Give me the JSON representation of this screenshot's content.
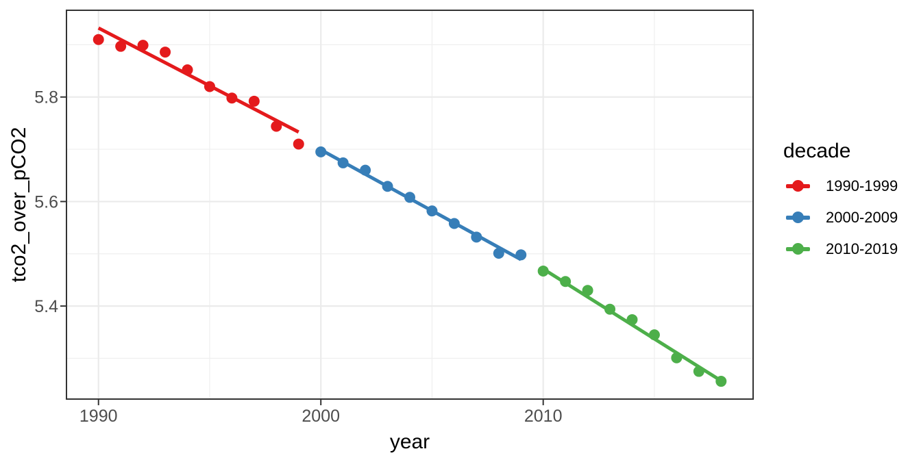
{
  "chart_data": {
    "type": "scatter",
    "title": "",
    "xlabel": "year",
    "ylabel": "tco2_over_pCO2",
    "xlim": [
      1988.56,
      2019.44
    ],
    "ylim": [
      5.222,
      5.966
    ],
    "grid": true,
    "x_ticks": [
      {
        "value": 1990,
        "label": "1990"
      },
      {
        "value": 2000,
        "label": "2000"
      },
      {
        "value": 2010,
        "label": "2010"
      }
    ],
    "x_minor_ticks": [
      1995,
      2005,
      2015
    ],
    "y_ticks": [
      {
        "value": 5.4,
        "label": "5.4"
      },
      {
        "value": 5.6,
        "label": "5.6"
      },
      {
        "value": 5.8,
        "label": "5.8"
      }
    ],
    "y_minor_ticks": [
      5.3,
      5.5,
      5.7,
      5.9
    ],
    "legend": {
      "title": "decade",
      "position": "right"
    },
    "series": [
      {
        "name": "1990-1999",
        "color": "#E41A1C",
        "points": [
          [
            1990,
            5.91
          ],
          [
            1991,
            5.897
          ],
          [
            1992,
            5.899
          ],
          [
            1993,
            5.886
          ],
          [
            1994,
            5.852
          ],
          [
            1995,
            5.82
          ],
          [
            1996,
            5.798
          ],
          [
            1997,
            5.792
          ],
          [
            1998,
            5.744
          ],
          [
            1999,
            5.71
          ]
        ],
        "trend": {
          "x1": 1990,
          "y1": 5.932,
          "x2": 1999,
          "y2": 5.733
        }
      },
      {
        "name": "2000-2009",
        "color": "#377EB8",
        "points": [
          [
            2000,
            5.695
          ],
          [
            2001,
            5.674
          ],
          [
            2002,
            5.66
          ],
          [
            2003,
            5.629
          ],
          [
            2004,
            5.608
          ],
          [
            2005,
            5.582
          ],
          [
            2006,
            5.558
          ],
          [
            2007,
            5.532
          ],
          [
            2008,
            5.501
          ],
          [
            2009,
            5.498
          ]
        ],
        "trend": {
          "x1": 2000,
          "y1": 5.699,
          "x2": 2009,
          "y2": 5.489
        }
      },
      {
        "name": "2010-2019",
        "color": "#4DAF4A",
        "points": [
          [
            2010,
            5.467
          ],
          [
            2011,
            5.447
          ],
          [
            2012,
            5.43
          ],
          [
            2013,
            5.394
          ],
          [
            2014,
            5.374
          ],
          [
            2015,
            5.345
          ],
          [
            2016,
            5.301
          ],
          [
            2017,
            5.275
          ],
          [
            2018,
            5.256
          ]
        ],
        "trend": {
          "x1": 2010,
          "y1": 5.471,
          "x2": 2018,
          "y2": 5.257
        }
      }
    ],
    "style": {
      "background": "#FFFFFF",
      "panel_background": "#FFFFFF",
      "grid_major_color": "#EBEBEB",
      "grid_minor_color": "#EFEFEF",
      "panel_border_color": "#333333",
      "tick_color": "#333333",
      "tick_label_color": "#4D4D4D",
      "text_color": "#000000"
    }
  }
}
